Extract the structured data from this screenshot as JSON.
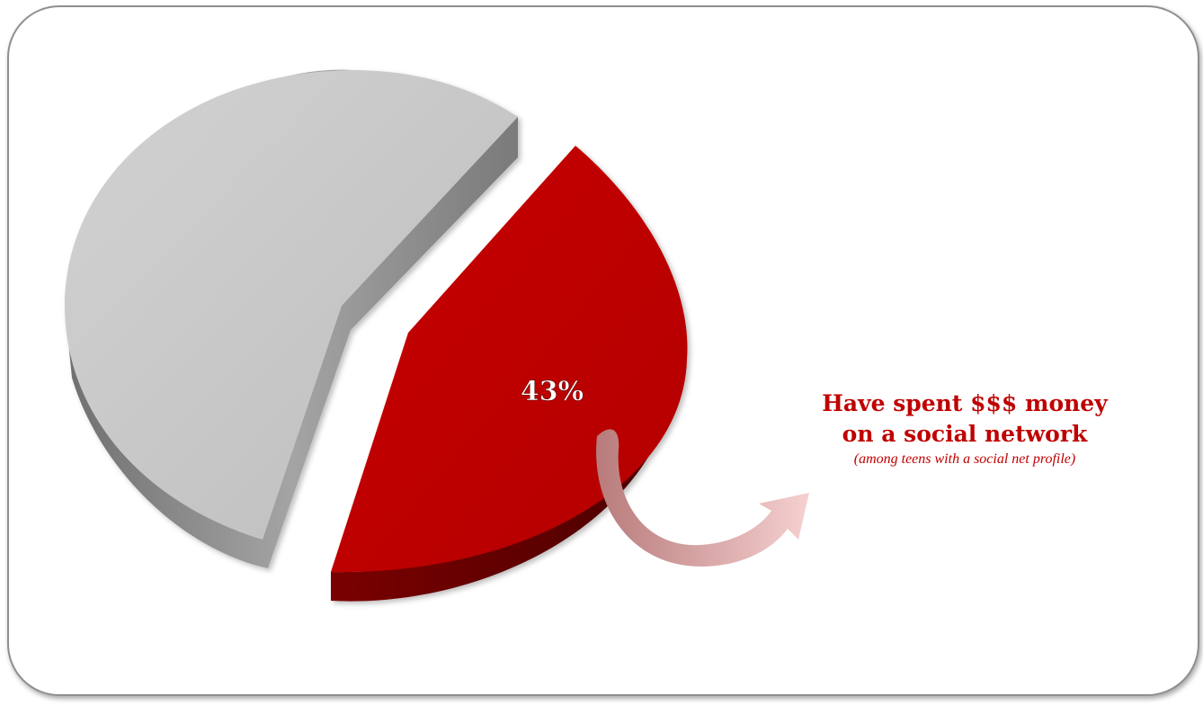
{
  "chart_data": {
    "type": "pie",
    "slices": [
      {
        "value": 57,
        "label": "",
        "color": "#c4c4c4"
      },
      {
        "value": 43,
        "label": "43%",
        "color": "#c00000"
      }
    ],
    "title": "",
    "legend": "none"
  },
  "callout": {
    "line1": "Have spent $$$ money",
    "line2": "on a social network",
    "subtitle": "(among teens with a social net profile)"
  },
  "colors": {
    "accent": "#c00000",
    "gray": "#c4c4c4",
    "arrow": "#e8a8a8"
  },
  "icons": {
    "arrow": "curved-arrow-icon"
  }
}
